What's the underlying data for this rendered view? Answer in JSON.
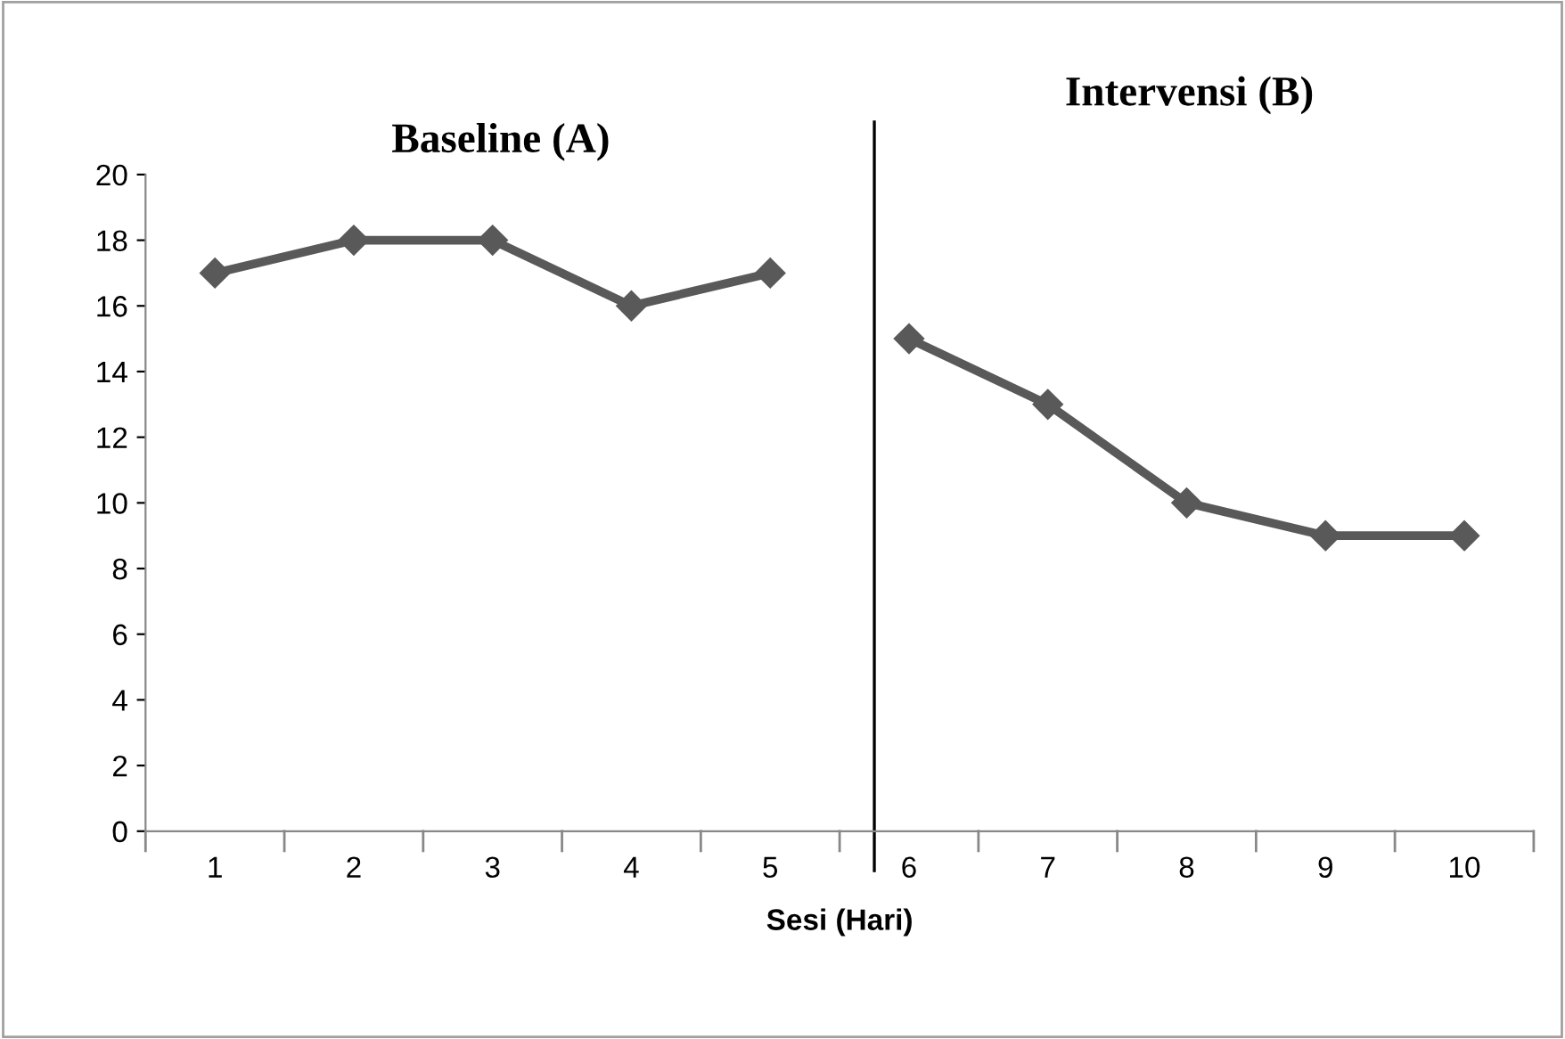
{
  "chart_data": {
    "type": "line",
    "xlabel": "Sesi (Hari)",
    "x": [
      1,
      2,
      3,
      4,
      5,
      6,
      7,
      8,
      9,
      10
    ],
    "series": [
      {
        "color": "#595959",
        "values": [
          17,
          18,
          18,
          16,
          17,
          null,
          null,
          null,
          null,
          null
        ]
      },
      {
        "color": "#595959",
        "values": [
          null,
          null,
          null,
          null,
          null,
          15,
          13,
          10,
          9,
          9
        ]
      }
    ],
    "xlim": [
      0.5,
      10.5
    ],
    "xticks": [
      1,
      2,
      3,
      4,
      5,
      6,
      7,
      8,
      9,
      10
    ],
    "ylim": [
      0,
      20
    ],
    "yticks": [
      0,
      2,
      4,
      6,
      8,
      10,
      12,
      14,
      16,
      18,
      20
    ],
    "ref_lines": [
      {
        "axis": "x",
        "value": 5.75,
        "color": "#000000"
      }
    ],
    "annotations": [
      "Baseline (A)",
      "Intervensi (B)"
    ],
    "marker": "diamond",
    "line_style": "solid",
    "grid": false,
    "legend": false
  }
}
